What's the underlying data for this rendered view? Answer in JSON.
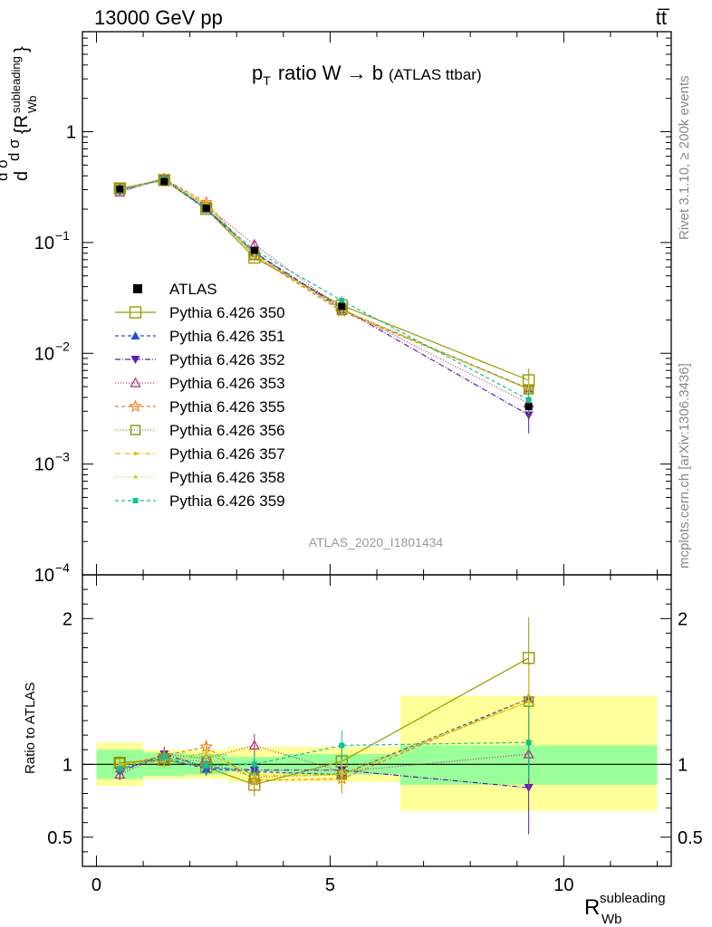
{
  "header": {
    "left": "13000 GeV pp",
    "right": "tt̅"
  },
  "side_labels": {
    "rivet": "Rivet 3.1.10, ≥ 200k events",
    "mcplots": "mcplots.cern.ch [arXiv:1306.3436]"
  },
  "chart_data": {
    "type": "line",
    "title": "p_T ratio W → b (ATLAS ttbar)",
    "title_main": "ratio W → b",
    "title_small": "(ATLAS ttbar)",
    "watermark": "ATLAS_2020_I1801434",
    "xlabel": "R_Wb^subleading",
    "xlabel_main": "R",
    "xlabel_sup": "subleading",
    "xlabel_sub": "Wb",
    "ylabel_main": "1/σ dσ/d{R_Wb^subleading}",
    "ylabel_ratio": "Ratio to ATLAS",
    "xlim": [
      -0.3,
      12.3
    ],
    "ylim_main": [
      0.0001,
      8
    ],
    "ylim_ratio": [
      0.3,
      2.3
    ],
    "x_ticks": [
      0,
      5,
      10
    ],
    "x_tick_labels": [
      "0",
      "5",
      "10"
    ],
    "y_ticks_main": [
      {
        "exp": 0,
        "label": "1"
      },
      {
        "exp": -1,
        "label": "10",
        "sup": "−1"
      },
      {
        "exp": -2,
        "label": "10",
        "sup": "−2"
      },
      {
        "exp": -3,
        "label": "10",
        "sup": "−3"
      },
      {
        "exp": -4,
        "label": "10",
        "sup": "−4"
      }
    ],
    "y_ticks_ratio": [
      {
        "value": 0.5,
        "label": "0.5"
      },
      {
        "value": 1,
        "label": "1"
      },
      {
        "value": 2,
        "label": "2"
      }
    ],
    "x": [
      0.5,
      1.45,
      2.35,
      3.38,
      5.25,
      9.25
    ],
    "bins": [
      [
        0,
        1
      ],
      [
        1,
        1.9
      ],
      [
        1.9,
        2.8
      ],
      [
        2.8,
        4
      ],
      [
        4,
        6.5
      ],
      [
        6.5,
        12
      ]
    ],
    "data": {
      "name": "ATLAS",
      "values": [
        0.305,
        0.355,
        0.205,
        0.085,
        0.0265,
        0.0033
      ],
      "band_stat": [
        [
          0.9,
          1.1
        ],
        [
          0.92,
          1.08
        ],
        [
          0.93,
          1.07
        ],
        [
          0.95,
          1.05
        ],
        [
          0.93,
          1.07
        ],
        [
          0.86,
          1.13
        ]
      ],
      "band_total": [
        [
          0.85,
          1.15
        ],
        [
          0.9,
          1.1
        ],
        [
          0.9,
          1.1
        ],
        [
          0.88,
          1.12
        ],
        [
          0.88,
          1.12
        ],
        [
          0.68,
          1.47
        ]
      ]
    },
    "series": [
      {
        "name": "Pythia 6.426 350",
        "color": "#999900",
        "dash": "",
        "marker": "square-open",
        "msize": 6,
        "values": [
          1.01,
          1.03,
          0.98,
          0.86,
          1.02,
          1.73
        ],
        "errors": [
          0.05,
          0.05,
          0.05,
          0.08,
          0.1,
          0.28
        ]
      },
      {
        "name": "Pythia 6.426 351",
        "color": "#1f4fd8",
        "dash": "4,3",
        "marker": "triangle-up",
        "msize": 5,
        "values": [
          0.97,
          1.04,
          0.97,
          0.95,
          0.93,
          1.45
        ],
        "errors": [
          0.04,
          0.05,
          0.05,
          0.08,
          0.1,
          0.25
        ]
      },
      {
        "name": "Pythia 6.426 352",
        "color": "#5a1fb0",
        "dash": "6,2,1,2",
        "marker": "triangle-down",
        "msize": 5,
        "values": [
          0.95,
          1.07,
          0.98,
          0.96,
          0.96,
          0.84
        ],
        "errors": [
          0.05,
          0.05,
          0.05,
          0.08,
          0.1,
          0.32
        ]
      },
      {
        "name": "Pythia 6.426 353",
        "color": "#b0307a",
        "dash": "1,2",
        "marker": "triangle-open",
        "msize": 5,
        "values": [
          0.93,
          1.07,
          1.04,
          1.13,
          0.95,
          1.07
        ],
        "errors": [
          0.04,
          0.05,
          0.05,
          0.08,
          0.1,
          0.25
        ]
      },
      {
        "name": "Pythia 6.426 355",
        "color": "#f07a1a",
        "dash": "4,3",
        "marker": "star-open",
        "msize": 6,
        "values": [
          0.99,
          1.06,
          1.12,
          0.89,
          0.9,
          1.45
        ],
        "errors": [
          0.04,
          0.05,
          0.05,
          0.08,
          0.1,
          0.25
        ]
      },
      {
        "name": "Pythia 6.426 356",
        "color": "#7c9a10",
        "dash": "1,2",
        "marker": "square-open",
        "msize": 5,
        "values": [
          1.01,
          1.04,
          1.02,
          0.91,
          0.93,
          1.43
        ],
        "errors": [
          0.04,
          0.05,
          0.05,
          0.08,
          0.1,
          0.25
        ]
      },
      {
        "name": "Pythia 6.426 357",
        "color": "#e0c010",
        "dash": "6,2,1,2",
        "marker": "dot",
        "msize": 2,
        "values": [
          1.0,
          1.02,
          1.08,
          0.92,
          0.93,
          1.43
        ],
        "errors": [
          0.04,
          0.05,
          0.05,
          0.08,
          0.1,
          0.25
        ]
      },
      {
        "name": "Pythia 6.426 358",
        "color": "#c8d030",
        "dash": "1,2",
        "marker": "dot",
        "msize": 2,
        "values": [
          0.99,
          1.03,
          1.05,
          0.93,
          0.95,
          1.43
        ],
        "errors": [
          0.04,
          0.05,
          0.05,
          0.08,
          0.1,
          0.25
        ]
      },
      {
        "name": "Pythia 6.426 359",
        "color": "#10c090",
        "dash": "4,3",
        "marker": "square-filled",
        "msize": 3,
        "values": [
          0.97,
          1.05,
          0.99,
          1.0,
          1.13,
          1.15
        ],
        "errors": [
          0.04,
          0.05,
          0.05,
          0.08,
          0.1,
          0.25
        ]
      }
    ]
  }
}
